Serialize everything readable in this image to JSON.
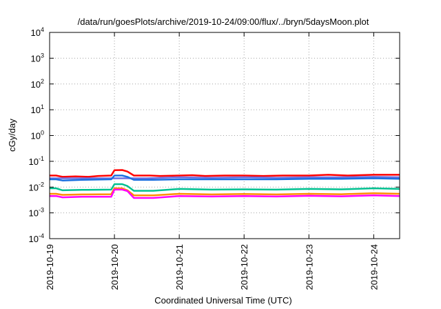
{
  "chart_data": {
    "type": "line",
    "title": "/data/run/goesPlots/archive/2019-10-24/09:00/flux/../bryn/5daysMoon.plot",
    "xlabel": "Coordinated Universal Time (UTC)",
    "ylabel": "cGy/day",
    "yscale": "log",
    "ylim_exponent": [
      -4,
      4
    ],
    "y_ticks": [
      {
        "base": "10",
        "exp": "4",
        "value": 4
      },
      {
        "base": "10",
        "exp": "3",
        "value": 3
      },
      {
        "base": "10",
        "exp": "2",
        "value": 2
      },
      {
        "base": "10",
        "exp": "1",
        "value": 1
      },
      {
        "base": "10",
        "exp": "0",
        "value": 0
      },
      {
        "base": "10",
        "exp": "-1",
        "value": -1
      },
      {
        "base": "10",
        "exp": "-2",
        "value": -2
      },
      {
        "base": "10",
        "exp": "-3",
        "value": -3
      },
      {
        "base": "10",
        "exp": "-4",
        "value": -4
      }
    ],
    "x_ticks": [
      {
        "label": "2019-10-19",
        "value": 0
      },
      {
        "label": "2019-10-20",
        "value": 1
      },
      {
        "label": "2019-10-21",
        "value": 2
      },
      {
        "label": "2019-10-22",
        "value": 3
      },
      {
        "label": "2019-10-23",
        "value": 4
      },
      {
        "label": "2019-10-24",
        "value": 5
      }
    ],
    "xlim": [
      0,
      5.4
    ],
    "grid": true,
    "series": [
      {
        "color": "#ff0000",
        "points": [
          [
            0,
            0.028
          ],
          [
            0.1,
            0.028
          ],
          [
            0.2,
            0.025
          ],
          [
            0.4,
            0.026
          ],
          [
            0.6,
            0.025
          ],
          [
            0.75,
            0.027
          ],
          [
            0.95,
            0.028
          ],
          [
            1.0,
            0.045
          ],
          [
            1.12,
            0.046
          ],
          [
            1.2,
            0.04
          ],
          [
            1.3,
            0.028
          ],
          [
            1.55,
            0.028
          ],
          [
            1.7,
            0.027
          ],
          [
            2.0,
            0.028
          ],
          [
            2.2,
            0.029
          ],
          [
            2.4,
            0.027
          ],
          [
            2.7,
            0.028
          ],
          [
            3.0,
            0.028
          ],
          [
            3.3,
            0.027
          ],
          [
            3.6,
            0.028
          ],
          [
            4.0,
            0.028
          ],
          [
            4.3,
            0.03
          ],
          [
            4.6,
            0.028
          ],
          [
            5.0,
            0.03
          ],
          [
            5.4,
            0.03
          ]
        ]
      },
      {
        "color": "#7070e0",
        "points": [
          [
            0,
            0.022
          ],
          [
            0.5,
            0.022
          ],
          [
            1.0,
            0.022
          ],
          [
            1.5,
            0.022
          ],
          [
            2.0,
            0.024
          ],
          [
            2.5,
            0.023
          ],
          [
            3.0,
            0.024
          ],
          [
            3.5,
            0.023
          ],
          [
            4.0,
            0.024
          ],
          [
            4.5,
            0.024
          ],
          [
            5.0,
            0.025
          ],
          [
            5.4,
            0.024
          ]
        ]
      },
      {
        "color": "#1a6fe0",
        "points": [
          [
            0,
            0.02
          ],
          [
            0.1,
            0.02
          ],
          [
            0.2,
            0.018
          ],
          [
            0.5,
            0.019
          ],
          [
            0.95,
            0.02
          ],
          [
            1.0,
            0.028
          ],
          [
            1.12,
            0.028
          ],
          [
            1.2,
            0.025
          ],
          [
            1.3,
            0.019
          ],
          [
            1.6,
            0.019
          ],
          [
            2.0,
            0.02
          ],
          [
            2.5,
            0.02
          ],
          [
            3.0,
            0.02
          ],
          [
            3.5,
            0.02
          ],
          [
            4.0,
            0.021
          ],
          [
            4.5,
            0.021
          ],
          [
            5.0,
            0.022
          ],
          [
            5.4,
            0.021
          ]
        ]
      },
      {
        "color": "#00c090",
        "points": [
          [
            0,
            0.009
          ],
          [
            0.1,
            0.009
          ],
          [
            0.2,
            0.0075
          ],
          [
            0.5,
            0.0078
          ],
          [
            0.95,
            0.008
          ],
          [
            1.0,
            0.013
          ],
          [
            1.12,
            0.013
          ],
          [
            1.2,
            0.011
          ],
          [
            1.3,
            0.0072
          ],
          [
            1.6,
            0.0072
          ],
          [
            2.0,
            0.0085
          ],
          [
            2.5,
            0.008
          ],
          [
            3.0,
            0.0082
          ],
          [
            3.5,
            0.008
          ],
          [
            4.0,
            0.0085
          ],
          [
            4.5,
            0.0082
          ],
          [
            5.0,
            0.009
          ],
          [
            5.4,
            0.0085
          ]
        ]
      },
      {
        "color": "#ff8c00",
        "points": [
          [
            0,
            0.0055
          ],
          [
            0.1,
            0.0055
          ],
          [
            0.2,
            0.005
          ],
          [
            0.5,
            0.0052
          ],
          [
            0.95,
            0.0053
          ],
          [
            1.0,
            0.009
          ],
          [
            1.12,
            0.009
          ],
          [
            1.2,
            0.0075
          ],
          [
            1.3,
            0.0048
          ],
          [
            1.6,
            0.0048
          ],
          [
            2.0,
            0.0055
          ],
          [
            2.5,
            0.0052
          ],
          [
            3.0,
            0.0054
          ],
          [
            3.5,
            0.0052
          ],
          [
            4.0,
            0.0055
          ],
          [
            4.5,
            0.0053
          ],
          [
            5.0,
            0.0058
          ],
          [
            5.4,
            0.0055
          ]
        ]
      },
      {
        "color": "#ff00ff",
        "points": [
          [
            0,
            0.0045
          ],
          [
            0.1,
            0.0045
          ],
          [
            0.2,
            0.004
          ],
          [
            0.5,
            0.0042
          ],
          [
            0.95,
            0.0042
          ],
          [
            1.0,
            0.008
          ],
          [
            1.12,
            0.008
          ],
          [
            1.2,
            0.007
          ],
          [
            1.3,
            0.0038
          ],
          [
            1.6,
            0.0038
          ],
          [
            2.0,
            0.0045
          ],
          [
            2.5,
            0.0043
          ],
          [
            3.0,
            0.0045
          ],
          [
            3.5,
            0.0043
          ],
          [
            4.0,
            0.0046
          ],
          [
            4.5,
            0.0044
          ],
          [
            5.0,
            0.0048
          ],
          [
            5.4,
            0.0045
          ]
        ]
      }
    ]
  }
}
